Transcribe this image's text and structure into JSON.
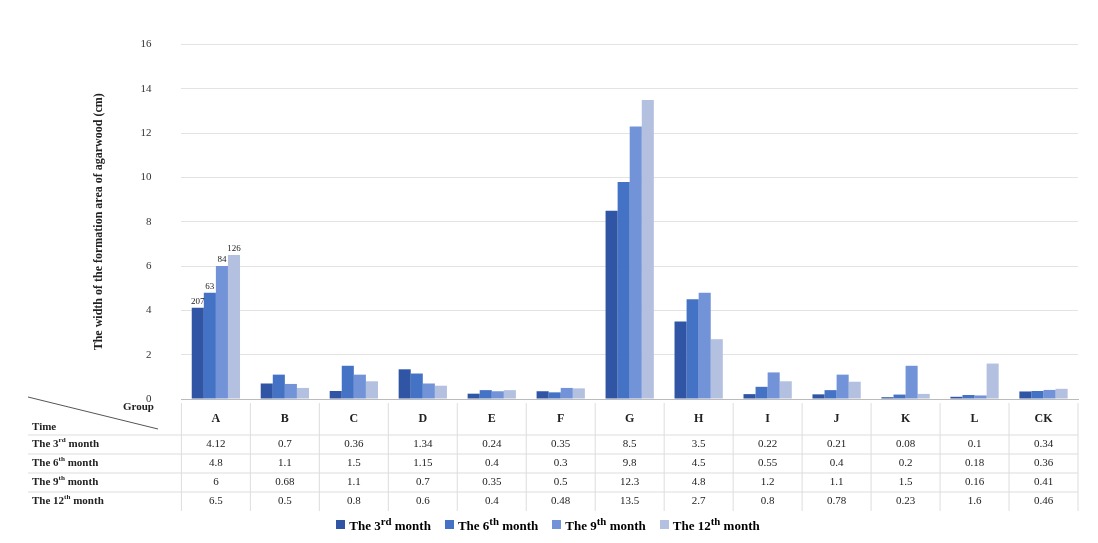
{
  "chart_data": {
    "type": "bar",
    "ylabel": "The width of the formation area of agarwood (cm)",
    "xlabel": "Group",
    "annotations": [
      "Time",
      "207",
      "63",
      "84",
      "126"
    ],
    "categories": [
      "A",
      "B",
      "C",
      "D",
      "E",
      "F",
      "G",
      "H",
      "I",
      "J",
      "K",
      "L",
      "CK"
    ],
    "series": [
      {
        "name": "The 3$^{rd}$ month",
        "color": "#2f55a4",
        "values": [
          4.12,
          0.7,
          0.36,
          1.34,
          0.24,
          0.35,
          8.5,
          3.5,
          0.22,
          0.21,
          0.08,
          0.1,
          0.34
        ]
      },
      {
        "name": "The 6$^{th}$ month",
        "color": "#4472c4",
        "values": [
          4.8,
          1.1,
          1.5,
          1.15,
          0.4,
          0.3,
          9.8,
          4.5,
          0.55,
          0.4,
          0.2,
          0.18,
          0.36
        ]
      },
      {
        "name": "The 9$^{th}$ month",
        "color": "#7393d8",
        "values": [
          6,
          0.68,
          1.1,
          0.7,
          0.35,
          0.5,
          12.3,
          4.8,
          1.2,
          1.1,
          1.5,
          0.16,
          0.41
        ]
      },
      {
        "name": "The 12$^{th}$ month",
        "color": "#b4c0e0",
        "values": [
          6.5,
          0.5,
          0.8,
          0.6,
          0.4,
          0.48,
          13.5,
          2.7,
          0.8,
          0.78,
          0.23,
          1.6,
          0.46
        ]
      }
    ],
    "ylim": [
      0,
      16
    ],
    "yticks": [
      0,
      2,
      4,
      6,
      8,
      10,
      12,
      14,
      16
    ],
    "grid": "y",
    "legend": "bottom",
    "data_labels": true
  }
}
